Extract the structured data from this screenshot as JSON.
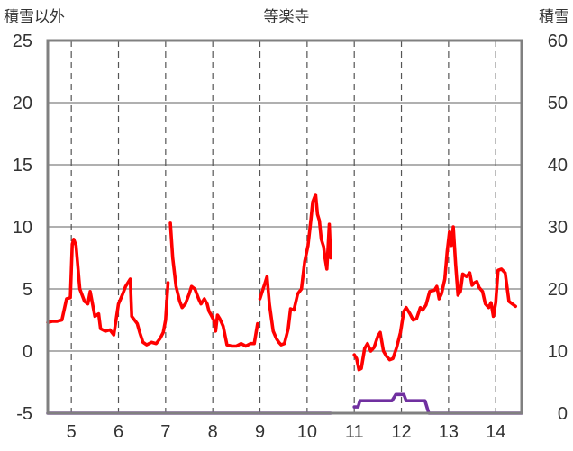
{
  "chart_data": {
    "type": "line",
    "title": "等楽寺",
    "ylabel_left": "積雪以外",
    "ylabel_right": "積雪",
    "x_range": [
      4.5,
      14.55
    ],
    "x_ticks": [
      5,
      6,
      7,
      8,
      9,
      10,
      11,
      12,
      13,
      14
    ],
    "x_tick_labels": [
      "5",
      "6",
      "7",
      "8",
      "9",
      "10",
      "11",
      "12",
      "13",
      "14"
    ],
    "y_left_range": [
      -5,
      25
    ],
    "y_left_ticks": [
      -5,
      0,
      5,
      10,
      15,
      20,
      25
    ],
    "y_left_tick_labels": [
      "-5",
      "0",
      "5",
      "10",
      "15",
      "20",
      "25"
    ],
    "y_right_range": [
      0,
      60
    ],
    "y_right_ticks": [
      0,
      10,
      20,
      30,
      40,
      50,
      60
    ],
    "y_right_tick_labels": [
      "0",
      "10",
      "20",
      "30",
      "40",
      "50",
      "60"
    ],
    "grid": {
      "horizontal": true,
      "vertical_dashed": true
    },
    "series": [
      {
        "axis": "left",
        "color": "#ff0000",
        "segments": [
          [
            [
              4.5,
              2.3
            ],
            [
              4.6,
              2.4
            ],
            [
              4.7,
              2.4
            ],
            [
              4.8,
              2.5
            ],
            [
              4.9,
              4.2
            ],
            [
              4.98,
              4.3
            ],
            [
              5.02,
              8.6
            ],
            [
              5.05,
              9.0
            ],
            [
              5.1,
              8.5
            ],
            [
              5.18,
              5.0
            ],
            [
              5.28,
              4.0
            ],
            [
              5.35,
              3.8
            ],
            [
              5.4,
              4.8
            ],
            [
              5.5,
              2.8
            ],
            [
              5.58,
              3.0
            ],
            [
              5.62,
              1.8
            ],
            [
              5.72,
              1.6
            ],
            [
              5.82,
              1.7
            ],
            [
              5.9,
              1.3
            ],
            [
              6.0,
              3.8
            ],
            [
              6.08,
              4.5
            ],
            [
              6.15,
              5.2
            ],
            [
              6.2,
              5.5
            ],
            [
              6.25,
              5.8
            ],
            [
              6.28,
              2.8
            ],
            [
              6.32,
              2.6
            ],
            [
              6.4,
              2.2
            ],
            [
              6.45,
              1.5
            ],
            [
              6.52,
              0.7
            ],
            [
              6.6,
              0.5
            ],
            [
              6.7,
              0.7
            ],
            [
              6.8,
              0.6
            ],
            [
              6.88,
              1.0
            ],
            [
              6.95,
              1.5
            ],
            [
              7.0,
              2.5
            ],
            [
              7.05,
              5.5
            ]
          ],
          [
            [
              7.1,
              10.3
            ],
            [
              7.15,
              7.5
            ],
            [
              7.22,
              5.2
            ],
            [
              7.3,
              4.0
            ],
            [
              7.35,
              3.5
            ],
            [
              7.42,
              3.8
            ],
            [
              7.5,
              4.6
            ],
            [
              7.55,
              5.2
            ],
            [
              7.62,
              5.0
            ],
            [
              7.7,
              4.2
            ],
            [
              7.75,
              3.8
            ],
            [
              7.82,
              4.2
            ],
            [
              7.88,
              3.8
            ],
            [
              7.92,
              3.2
            ],
            [
              7.98,
              2.8
            ],
            [
              8.02,
              2.5
            ],
            [
              8.06,
              1.6
            ],
            [
              8.1,
              2.9
            ],
            [
              8.15,
              2.6
            ],
            [
              8.22,
              2.0
            ],
            [
              8.3,
              0.5
            ],
            [
              8.4,
              0.4
            ],
            [
              8.5,
              0.4
            ],
            [
              8.6,
              0.6
            ],
            [
              8.7,
              0.4
            ],
            [
              8.8,
              0.6
            ],
            [
              8.88,
              0.6
            ],
            [
              8.95,
              2.2
            ]
          ],
          [
            [
              9.0,
              4.2
            ],
            [
              9.05,
              4.8
            ],
            [
              9.1,
              5.4
            ],
            [
              9.15,
              6.0
            ],
            [
              9.2,
              3.8
            ],
            [
              9.28,
              1.6
            ],
            [
              9.35,
              1.0
            ],
            [
              9.4,
              0.7
            ],
            [
              9.45,
              0.5
            ],
            [
              9.52,
              0.6
            ],
            [
              9.6,
              1.8
            ],
            [
              9.65,
              3.4
            ],
            [
              9.72,
              3.3
            ],
            [
              9.8,
              4.6
            ],
            [
              9.88,
              5.0
            ],
            [
              9.95,
              7.2
            ],
            [
              10.02,
              8.5
            ],
            [
              10.08,
              10.5
            ],
            [
              10.12,
              12.0
            ],
            [
              10.18,
              12.6
            ],
            [
              10.22,
              11.0
            ],
            [
              10.26,
              10.5
            ],
            [
              10.3,
              9.0
            ],
            [
              10.35,
              8.4
            ],
            [
              10.38,
              7.5
            ],
            [
              10.42,
              6.6
            ],
            [
              10.47,
              10.2
            ],
            [
              10.5,
              7.5
            ]
          ],
          [
            [
              11.0,
              -0.3
            ],
            [
              11.05,
              -0.6
            ],
            [
              11.1,
              -1.5
            ],
            [
              11.15,
              -1.4
            ],
            [
              11.22,
              0.2
            ],
            [
              11.28,
              0.6
            ],
            [
              11.35,
              0.0
            ],
            [
              11.42,
              0.3
            ],
            [
              11.5,
              1.2
            ],
            [
              11.55,
              1.5
            ],
            [
              11.62,
              0.0
            ],
            [
              11.68,
              -0.4
            ],
            [
              11.75,
              -0.7
            ],
            [
              11.82,
              -0.6
            ],
            [
              11.9,
              0.3
            ],
            [
              11.98,
              1.5
            ],
            [
              12.05,
              3.2
            ],
            [
              12.1,
              3.5
            ],
            [
              12.18,
              3.0
            ],
            [
              12.25,
              2.5
            ],
            [
              12.32,
              2.6
            ],
            [
              12.4,
              3.5
            ],
            [
              12.45,
              3.3
            ],
            [
              12.52,
              3.7
            ],
            [
              12.6,
              4.8
            ],
            [
              12.7,
              4.9
            ],
            [
              12.75,
              5.2
            ],
            [
              12.8,
              4.2
            ],
            [
              12.85,
              4.6
            ],
            [
              12.92,
              5.8
            ],
            [
              12.97,
              8.0
            ],
            [
              13.02,
              9.6
            ],
            [
              13.06,
              8.5
            ],
            [
              13.1,
              10.0
            ],
            [
              13.15,
              7.0
            ],
            [
              13.2,
              4.5
            ],
            [
              13.25,
              4.8
            ],
            [
              13.3,
              6.2
            ],
            [
              13.38,
              6.0
            ],
            [
              13.45,
              6.3
            ],
            [
              13.5,
              5.3
            ],
            [
              13.55,
              5.5
            ],
            [
              13.6,
              5.6
            ],
            [
              13.65,
              5.1
            ],
            [
              13.72,
              4.8
            ],
            [
              13.78,
              3.8
            ],
            [
              13.85,
              3.5
            ],
            [
              13.9,
              3.9
            ],
            [
              13.95,
              2.8
            ],
            [
              14.0,
              3.9
            ],
            [
              14.05,
              6.5
            ],
            [
              14.12,
              6.6
            ],
            [
              14.2,
              6.3
            ],
            [
              14.28,
              4.0
            ],
            [
              14.35,
              3.8
            ],
            [
              14.42,
              3.6
            ]
          ]
        ]
      },
      {
        "axis": "right",
        "color": "#7030a0",
        "segments": [
          [
            [
              4.5,
              0
            ],
            [
              10.5,
              0
            ]
          ],
          [
            [
              11.0,
              1
            ],
            [
              11.08,
              1
            ],
            [
              11.12,
              2
            ],
            [
              11.8,
              2
            ],
            [
              11.88,
              3
            ],
            [
              12.05,
              3
            ],
            [
              12.1,
              2
            ],
            [
              12.5,
              2
            ],
            [
              12.58,
              0
            ],
            [
              14.55,
              0
            ]
          ]
        ]
      }
    ]
  }
}
